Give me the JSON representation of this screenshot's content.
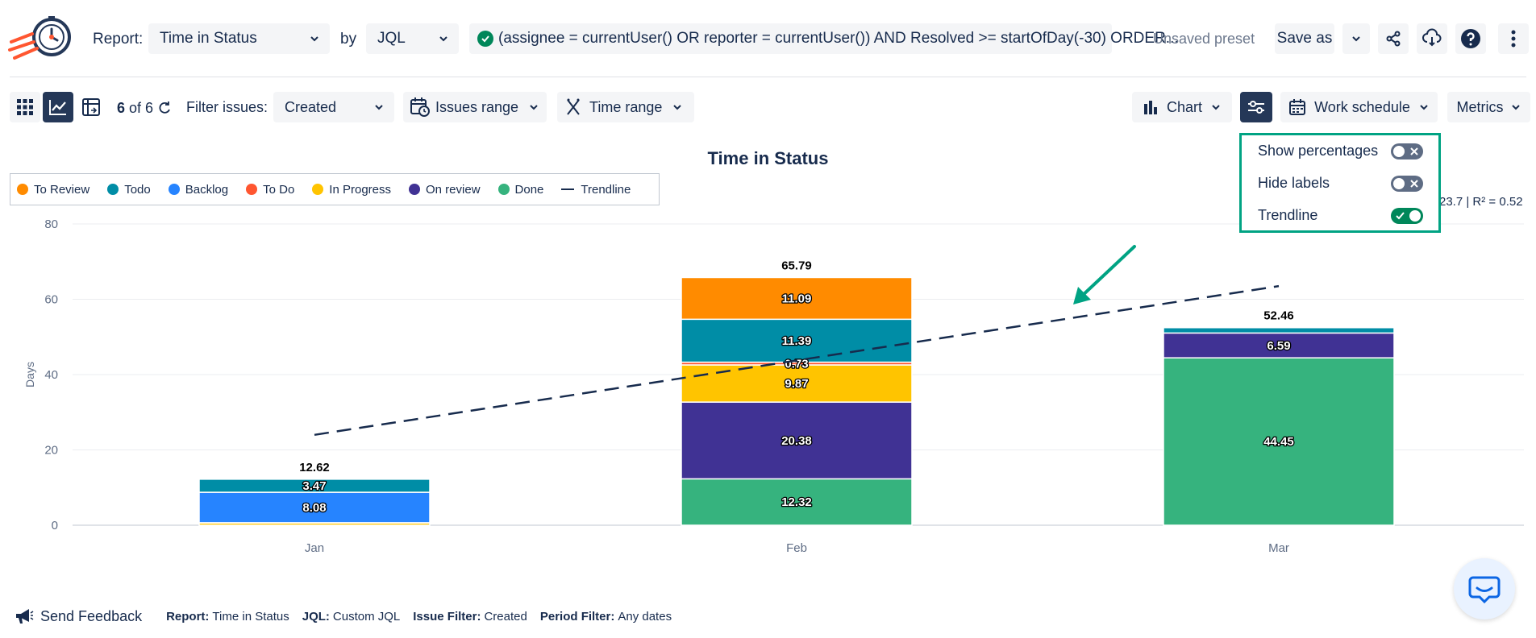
{
  "header": {
    "report_label": "Report:",
    "report_value": "Time in Status",
    "by_label": "by",
    "by_value": "JQL",
    "jql_query": "(assignee = currentUser() OR reporter = currentUser()) AND Resolved >= startOfDay(-30) ORDER...",
    "preset_status": "Unsaved preset",
    "save_as": "Save as"
  },
  "toolbar": {
    "count_bold": "6",
    "count_of": "of 6",
    "filter_label": "Filter issues:",
    "filter_value": "Created",
    "issues_range": "Issues range",
    "time_range": "Time range",
    "chart": "Chart",
    "work_schedule": "Work schedule",
    "metrics": "Metrics"
  },
  "settings_popup": {
    "items": [
      {
        "label": "Show percentages",
        "on": false
      },
      {
        "label": "Hide labels",
        "on": false
      },
      {
        "label": "Trendline",
        "on": true
      }
    ]
  },
  "legend": [
    {
      "label": "To Review",
      "color": "#ff8b00"
    },
    {
      "label": "Todo",
      "color": "#008da6"
    },
    {
      "label": "Backlog",
      "color": "#2684ff"
    },
    {
      "label": "To Do",
      "color": "#ff5630"
    },
    {
      "label": "In Progress",
      "color": "#ffc400"
    },
    {
      "label": "On review",
      "color": "#403294"
    },
    {
      "label": "Done",
      "color": "#36b37e"
    },
    {
      "label": "Trendline",
      "color": "#172b4d"
    }
  ],
  "chart_data": {
    "type": "bar",
    "stacked": true,
    "title": "Time in Status",
    "ylabel": "Days",
    "ylim": [
      0,
      80
    ],
    "yticks": [
      0,
      20,
      40,
      60,
      80
    ],
    "categories": [
      "Jan",
      "Feb",
      "Mar"
    ],
    "totals": [
      12.62,
      65.79,
      52.46
    ],
    "series": [
      {
        "name": "Done",
        "color": "#36b37e",
        "values": [
          0,
          12.32,
          44.45
        ]
      },
      {
        "name": "On review",
        "color": "#403294",
        "values": [
          0,
          20.38,
          6.59
        ]
      },
      {
        "name": "In Progress",
        "color": "#ffc400",
        "values": [
          0.6,
          9.87,
          0
        ]
      },
      {
        "name": "To Do",
        "color": "#ff5630",
        "values": [
          0.07,
          0.73,
          0
        ]
      },
      {
        "name": "Backlog",
        "color": "#2684ff",
        "values": [
          8.08,
          0,
          0
        ]
      },
      {
        "name": "Todo",
        "color": "#008da6",
        "values": [
          3.47,
          11.39,
          1.42
        ]
      },
      {
        "name": "To Review",
        "color": "#ff8b00",
        "values": [
          0,
          11.09,
          0
        ]
      }
    ],
    "bar_labels": [
      {
        "cat": 0,
        "series": "Backlog",
        "text": "8.08"
      },
      {
        "cat": 0,
        "series": "Todo",
        "text": "3.47"
      },
      {
        "cat": 1,
        "series": "Done",
        "text": "12.32"
      },
      {
        "cat": 1,
        "series": "On review",
        "text": "20.38"
      },
      {
        "cat": 1,
        "series": "In Progress",
        "text": "9.87"
      },
      {
        "cat": 1,
        "series": "To Do",
        "text": "0.73"
      },
      {
        "cat": 1,
        "series": "Todo",
        "text": "11.39"
      },
      {
        "cat": 1,
        "series": "To Review",
        "text": "11.09"
      },
      {
        "cat": 2,
        "series": "Done",
        "text": "44.45"
      },
      {
        "cat": 2,
        "series": "On review",
        "text": "6.59"
      }
    ],
    "trendline": {
      "from": {
        "x": "Jan",
        "y": 24
      },
      "to": {
        "x": "Mar",
        "y": 63.5
      }
    },
    "trend_stats": "23.7 | R² = 0.52"
  },
  "footer": {
    "send_feedback": "Send Feedback",
    "meta": [
      {
        "key": "Report:",
        "value": "Time in Status"
      },
      {
        "key": "JQL:",
        "value": "Custom JQL"
      },
      {
        "key": "Issue Filter:",
        "value": "Created"
      },
      {
        "key": "Period Filter:",
        "value": "Any dates"
      }
    ]
  }
}
